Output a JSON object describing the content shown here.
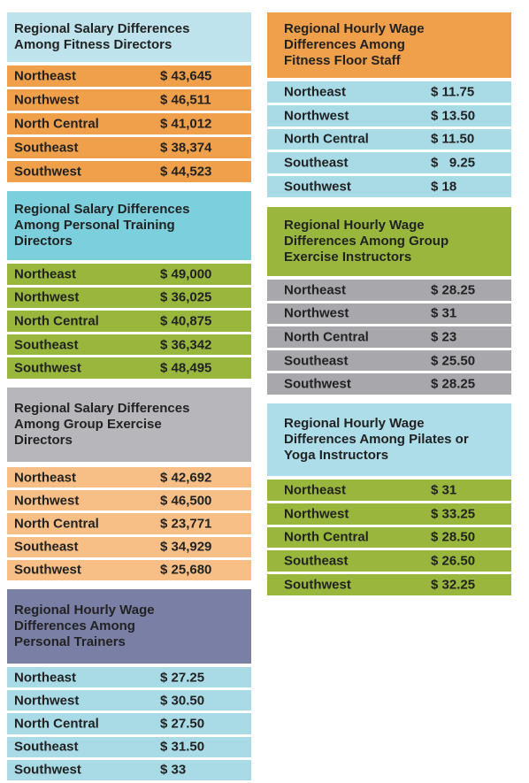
{
  "tables": [
    {
      "title": "Regional Salary Differences Among Fitness Directors",
      "rows": [
        [
          "Northeast",
          "$ 43,645"
        ],
        [
          "Northwest",
          "$ 46,511"
        ],
        [
          "North Central",
          "$ 41,012"
        ],
        [
          "Southeast",
          "$ 38,374"
        ],
        [
          "Southwest",
          "$ 44,523"
        ]
      ]
    },
    {
      "title": "Regional Salary Differences Among Personal Training Directors",
      "rows": [
        [
          "Northeast",
          "$ 49,000"
        ],
        [
          "Northwest",
          "$ 36,025"
        ],
        [
          "North Central",
          "$ 40,875"
        ],
        [
          "Southeast",
          "$ 36,342"
        ],
        [
          "Southwest",
          "$ 48,495"
        ]
      ]
    },
    {
      "title": "Regional Salary Differences Among Group Exercise Directors",
      "rows": [
        [
          "Northeast",
          "$ 42,692"
        ],
        [
          "Northwest",
          "$ 46,500"
        ],
        [
          "North Central",
          "$ 23,771"
        ],
        [
          "Southeast",
          "$ 34,929"
        ],
        [
          "Southwest",
          "$ 25,680"
        ]
      ]
    },
    {
      "title": "Regional Hourly Wage Differences Among Personal Trainers",
      "rows": [
        [
          "Northeast",
          "$ 27.25"
        ],
        [
          "Northwest",
          "$ 30.50"
        ],
        [
          "North Central",
          "$ 27.50"
        ],
        [
          "Southeast",
          "$ 31.50"
        ],
        [
          "Southwest",
          "$ 33"
        ]
      ]
    },
    {
      "title": "Regional Hourly Wage Differences Among Fitness Floor Staff",
      "rows": [
        [
          "Northeast",
          "$ 11.75"
        ],
        [
          "Northwest",
          "$ 13.50"
        ],
        [
          "North Central",
          "$ 11.50"
        ],
        [
          "Southeast",
          "$   9.25"
        ],
        [
          "Southwest",
          "$ 18"
        ]
      ]
    },
    {
      "title": "Regional Hourly Wage Differences Among Group Exercise Instructors",
      "rows": [
        [
          "Northeast",
          "$ 28.25"
        ],
        [
          "Northwest",
          "$ 31"
        ],
        [
          "North Central",
          "$ 23"
        ],
        [
          "Southeast",
          "$ 25.50"
        ],
        [
          "Southwest",
          "$ 28.25"
        ]
      ]
    },
    {
      "title": "Regional Hourly Wage Differences Among Pilates or Yoga Instructors",
      "rows": [
        [
          "Northeast",
          "$ 31"
        ],
        [
          "Northwest",
          "$ 33.25"
        ],
        [
          "North Central",
          "$ 28.50"
        ],
        [
          "Southeast",
          "$ 26.50"
        ],
        [
          "Southwest",
          "$ 32.25"
        ]
      ]
    }
  ]
}
